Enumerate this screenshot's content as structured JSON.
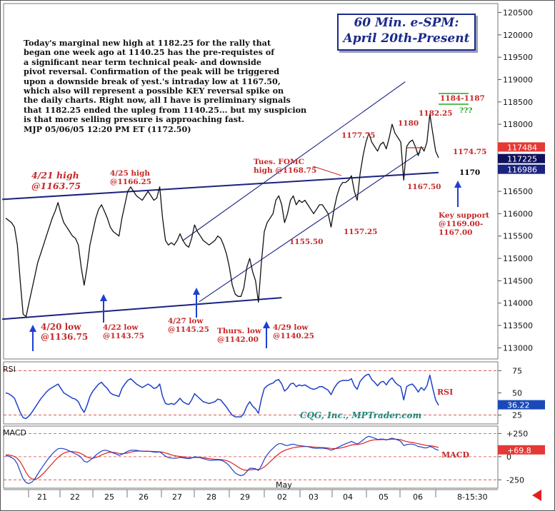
{
  "title": {
    "line1": "60 Min. e-SPM:",
    "line2": "April 20th-Present"
  },
  "commentary": "Today's marginal new high at 1182.25 for the rally that\nbegan one week ago at 1140.25 has the pre-requistes of\na significant near term technical peak- and downside\npivot reversal. Confirmation of the peak will be triggered\nupon a downside break of yest.'s intraday low at 1167.50,\nwhich also will represent a possible KEY reversal spike on\nthe daily charts. Right now, all I have is preliminary signals\nthat 1182.25 ended the upleg from 1140.25... but my suspicion\nis that more selling pressure is approaching fast.\nMJP 05/06/05 12:20 PM ET (1172.50)",
  "credit": "CQG, Inc., MPTrader.com",
  "colors": {
    "price_line": "#111111",
    "trendline": "#1a237e",
    "annotation_red": "#c62828",
    "arrow_blue": "#1e3fd0",
    "rsi_line": "#1e40c8",
    "macd_line": "#1e40c8",
    "signal_line": "#e02020",
    "price_tag_red": "#e53935",
    "price_tag_dark": "#10105a",
    "price_tag_blue": "#1a237e",
    "green_note": "#1faa1f"
  },
  "chart_data": [
    {
      "type": "line",
      "name": "price",
      "y_axis_ticks": [
        "120500",
        "120000",
        "119500",
        "119000",
        "118500",
        "118000",
        "117500",
        "117000",
        "116500",
        "116000",
        "115500",
        "115000",
        "114500",
        "114000",
        "113500",
        "113000"
      ],
      "ylim": [
        112750,
        120700
      ],
      "x_axis_ticks": [
        "21",
        "22",
        "25",
        "26",
        "27",
        "28",
        "29",
        "02",
        "03",
        "04",
        "05",
        "06"
      ],
      "x_month_label": "May",
      "time_label": "8-15:30",
      "price_tags": [
        "117484",
        "117225",
        "116986"
      ],
      "series": [
        {
          "values": [
            115900,
            115850,
            115800,
            115700,
            115300,
            114500,
            113750,
            113700,
            114000,
            114300,
            114600,
            114900,
            115100,
            115300,
            115500,
            115700,
            115900,
            116050,
            116250,
            116000,
            115800,
            115700,
            115600,
            115500,
            115450,
            115300,
            114800,
            114400,
            114800,
            115300,
            115600,
            115900,
            116100,
            116200,
            116050,
            115900,
            115700,
            115600,
            115550,
            115500,
            115900,
            116200,
            116500,
            116600,
            116500,
            116400,
            116350,
            116300,
            116400,
            116500,
            116400,
            116300,
            116350,
            116600,
            115900,
            115400,
            115300,
            115350,
            115300,
            115400,
            115550,
            115400,
            115300,
            115250,
            115450,
            115750,
            115600,
            115500,
            115400,
            115350,
            115300,
            115350,
            115400,
            115500,
            115450,
            115300,
            115100,
            114800,
            114400,
            114200,
            114150,
            114150,
            114350,
            114800,
            115000,
            114700,
            114500,
            114020,
            114900,
            115600,
            115800,
            115900,
            116000,
            116300,
            116400,
            116200,
            115800,
            116000,
            116300,
            116400,
            116200,
            116300,
            116250,
            116300,
            116200,
            116100,
            116000,
            116100,
            116200,
            116200,
            116100,
            116000,
            115700,
            116100,
            116400,
            116600,
            116700,
            116700,
            116750,
            116850,
            116500,
            116300,
            116900,
            117300,
            117600,
            117800,
            117600,
            117500,
            117400,
            117550,
            117600,
            117450,
            117700,
            118000,
            117800,
            117700,
            117600,
            116750,
            117500,
            117600,
            117650,
            117500,
            117300,
            117500,
            117400,
            117600,
            118225,
            117800,
            117400,
            117250
          ]
        }
      ],
      "price_annotations": [
        "4/21 high\n@1163.75",
        "4/25 high\n@1166.25",
        "4/20 low\n@1136.75",
        "4/22 low\n@1143.75",
        "4/27 low\n@1145.25",
        "Thurs. low\n@1142.00",
        "4/29 low\n@1140.25",
        "1155.50",
        "1157.25",
        "1177.75",
        "1180",
        "1182.25",
        "1174.75",
        "1167.50",
        "Tues. FOMC\nhigh @1168.75",
        "1184-1187",
        "???",
        "1170",
        "Key support\n@1169.00-\n1167.00"
      ]
    },
    {
      "type": "line",
      "name": "RSI",
      "label": "RSI",
      "y_axis_ticks": [
        "75",
        "50",
        "25"
      ],
      "ylim": [
        15,
        85
      ],
      "value_tag": "36.22",
      "series": [
        {
          "name": "RSI",
          "values": [
            50,
            49,
            47,
            44,
            36,
            28,
            22,
            21,
            24,
            28,
            33,
            38,
            43,
            47,
            51,
            54,
            56,
            58,
            60,
            55,
            50,
            48,
            46,
            44,
            43,
            40,
            33,
            28,
            36,
            46,
            52,
            56,
            60,
            62,
            58,
            55,
            50,
            48,
            47,
            46,
            55,
            60,
            64,
            66,
            63,
            60,
            58,
            56,
            58,
            60,
            58,
            55,
            56,
            60,
            46,
            38,
            37,
            38,
            37,
            40,
            44,
            40,
            38,
            37,
            42,
            49,
            46,
            43,
            40,
            39,
            38,
            39,
            40,
            43,
            42,
            38,
            34,
            29,
            25,
            23,
            23,
            23,
            27,
            35,
            40,
            35,
            32,
            27,
            43,
            55,
            58,
            60,
            61,
            64,
            65,
            60,
            52,
            55,
            60,
            61,
            57,
            59,
            58,
            59,
            57,
            55,
            54,
            55,
            57,
            57,
            55,
            53,
            48,
            55,
            60,
            63,
            64,
            64,
            64,
            66,
            58,
            54,
            63,
            67,
            70,
            71,
            65,
            62,
            58,
            62,
            63,
            59,
            64,
            67,
            62,
            59,
            57,
            42,
            57,
            59,
            60,
            56,
            51,
            56,
            53,
            58,
            70,
            55,
            42,
            36
          ]
        }
      ]
    },
    {
      "type": "line",
      "name": "MACD",
      "label": "MACD",
      "y_axis_ticks": [
        "+250",
        "0",
        "-250"
      ],
      "ylim": [
        -340,
        330
      ],
      "value_tag": "+69.8",
      "series": [
        {
          "name": "MACD",
          "values": [
            10,
            5,
            -10,
            -30,
            -80,
            -160,
            -240,
            -280,
            -290,
            -275,
            -240,
            -190,
            -140,
            -95,
            -50,
            -10,
            30,
            60,
            85,
            90,
            85,
            75,
            60,
            45,
            30,
            15,
            -10,
            -50,
            -60,
            -40,
            -15,
            15,
            40,
            60,
            70,
            65,
            55,
            40,
            28,
            15,
            25,
            40,
            58,
            68,
            70,
            68,
            62,
            58,
            57,
            58,
            55,
            50,
            48,
            52,
            30,
            5,
            -10,
            -15,
            -18,
            -15,
            -8,
            -12,
            -18,
            -22,
            -15,
            0,
            -5,
            -12,
            -22,
            -30,
            -38,
            -40,
            -38,
            -35,
            -38,
            -50,
            -70,
            -100,
            -140,
            -175,
            -195,
            -205,
            -195,
            -160,
            -125,
            -125,
            -130,
            -150,
            -100,
            -30,
            20,
            60,
            90,
            120,
            140,
            140,
            125,
            120,
            130,
            135,
            125,
            120,
            115,
            112,
            108,
            100,
            92,
            90,
            92,
            92,
            88,
            82,
            70,
            80,
            95,
            110,
            125,
            140,
            150,
            165,
            150,
            135,
            155,
            180,
            205,
            220,
            210,
            200,
            185,
            190,
            190,
            180,
            190,
            200,
            190,
            180,
            165,
            120,
            130,
            135,
            135,
            125,
            110,
            105,
            95,
            95,
            110,
            100,
            80,
            70
          ]
        },
        {
          "name": "Signal",
          "values": [
            20,
            18,
            12,
            2,
            -18,
            -55,
            -110,
            -170,
            -215,
            -240,
            -245,
            -235,
            -210,
            -180,
            -145,
            -110,
            -75,
            -40,
            -8,
            18,
            38,
            50,
            55,
            55,
            50,
            44,
            33,
            15,
            -5,
            -15,
            -17,
            -10,
            3,
            18,
            32,
            42,
            47,
            46,
            42,
            35,
            32,
            34,
            40,
            48,
            55,
            60,
            61,
            60,
            59,
            59,
            58,
            56,
            54,
            53,
            48,
            40,
            30,
            20,
            12,
            6,
            2,
            -2,
            -6,
            -10,
            -11,
            -9,
            -8,
            -9,
            -12,
            -16,
            -21,
            -25,
            -28,
            -30,
            -31,
            -35,
            -42,
            -54,
            -71,
            -91,
            -112,
            -131,
            -144,
            -147,
            -143,
            -139,
            -137,
            -139,
            -131,
            -111,
            -85,
            -55,
            -26,
            3,
            30,
            52,
            67,
            78,
            88,
            97,
            102,
            106,
            108,
            109,
            109,
            107,
            104,
            101,
            99,
            98,
            96,
            93,
            89,
            87,
            88,
            92,
            99,
            107,
            116,
            126,
            130,
            131,
            135,
            144,
            156,
            169,
            177,
            182,
            182,
            184,
            185,
            184,
            185,
            188,
            188,
            187,
            183,
            171,
            163,
            157,
            153,
            147,
            140,
            133,
            126,
            120,
            118,
            114,
            107,
            100
          ]
        }
      ]
    }
  ]
}
